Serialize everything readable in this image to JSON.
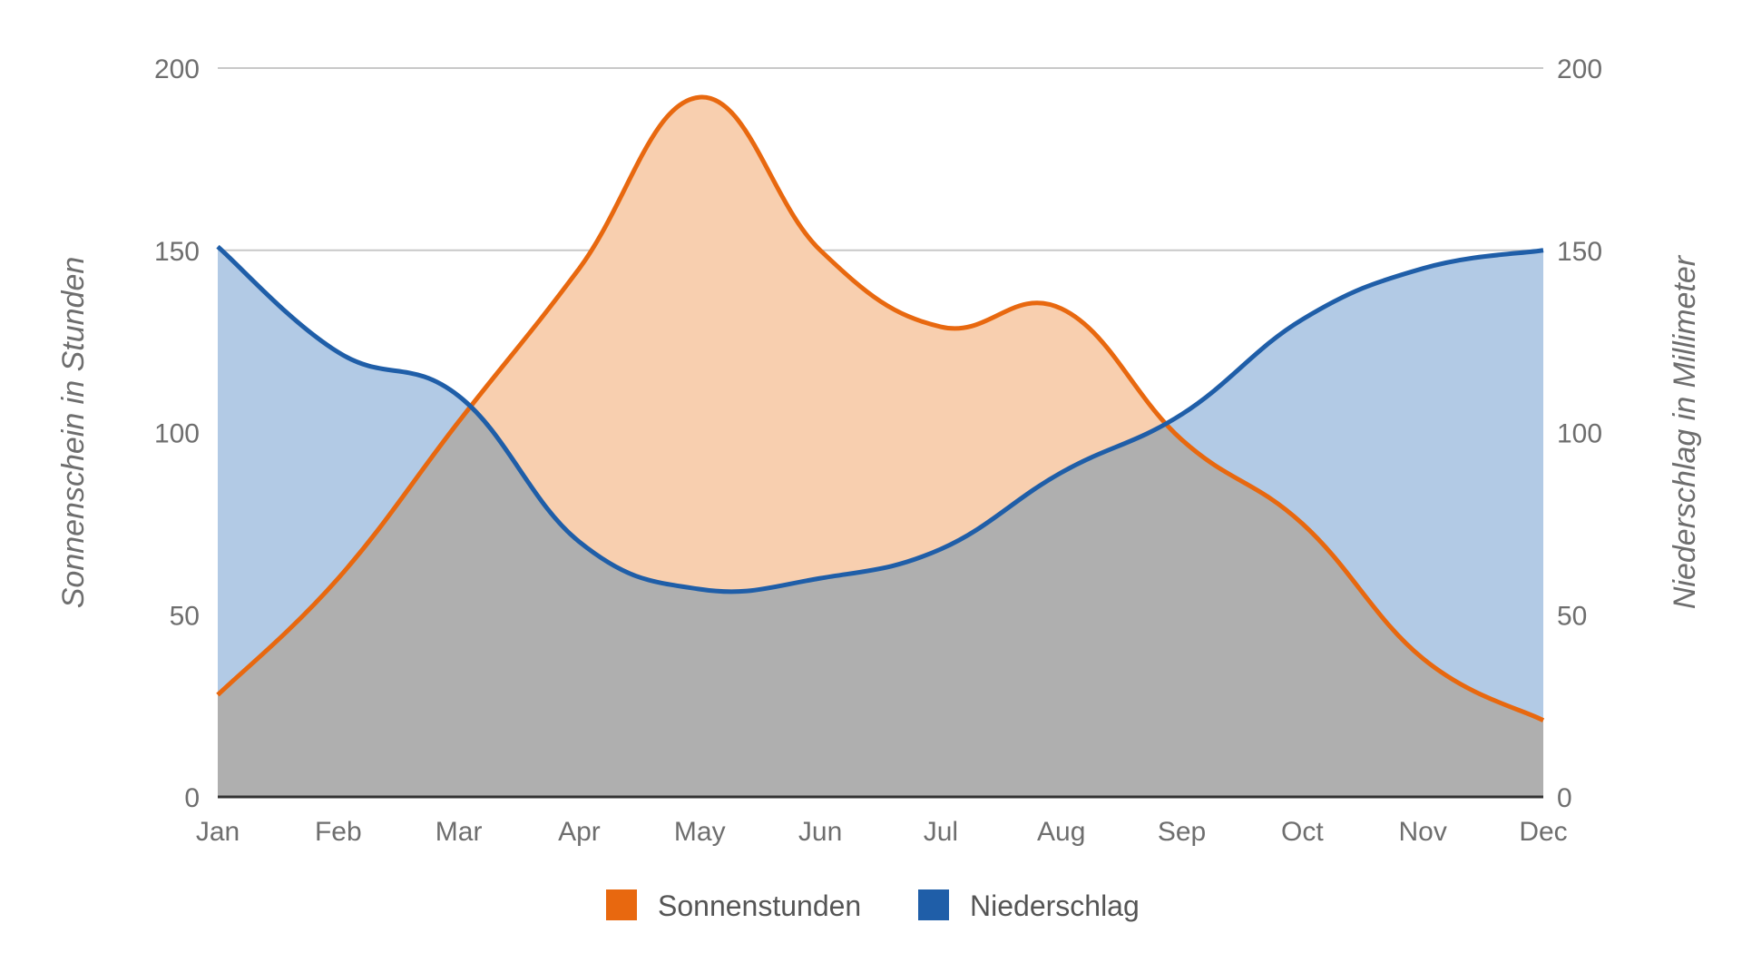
{
  "chart_data": {
    "type": "area",
    "categories": [
      "Jan",
      "Feb",
      "Mar",
      "Apr",
      "May",
      "Jun",
      "Jul",
      "Aug",
      "Sep",
      "Oct",
      "Nov",
      "Dec"
    ],
    "series": [
      {
        "name": "Sonnenstunden",
        "axis": "left",
        "values": [
          28,
          60,
          103,
          145,
          192,
          150,
          129,
          134,
          98,
          75,
          38,
          21
        ],
        "line_color": "#e8680f",
        "fill_color": "#f8cfaf"
      },
      {
        "name": "Niederschlag",
        "axis": "right",
        "values": [
          151,
          122,
          110,
          70,
          57,
          60,
          68,
          89,
          105,
          131,
          145,
          150
        ],
        "line_color": "#1f5ea8",
        "fill_color": "#b2cae5"
      }
    ],
    "overlap_color": "#afafaf",
    "y_left": {
      "label": "Sonnenschein in Stunden",
      "lim": [
        0,
        200
      ],
      "ticks": [
        "0",
        "50",
        "100",
        "150",
        "200"
      ]
    },
    "y_right": {
      "label": "Niederschlag in Millimeter",
      "lim": [
        0,
        200
      ],
      "ticks": [
        "0",
        "50",
        "100",
        "150",
        "200"
      ]
    },
    "grid": true,
    "legend_position": "bottom-center"
  }
}
